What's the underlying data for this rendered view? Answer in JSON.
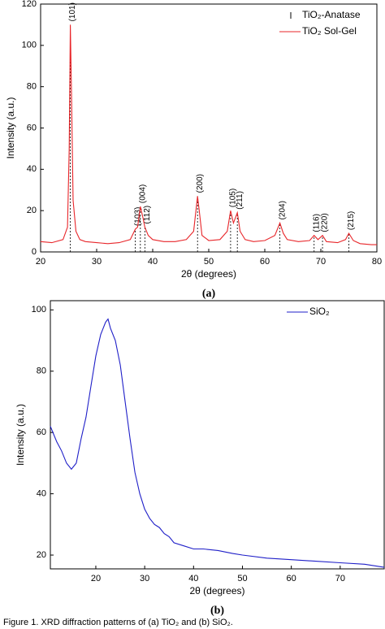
{
  "chart_data": [
    {
      "type": "line",
      "label": "(a)",
      "xlabel": "2θ (degrees)",
      "ylabel": "Intensity (a.u.)",
      "xlim": [
        20,
        80
      ],
      "ylim": [
        0,
        120
      ],
      "xticks": [
        20,
        30,
        40,
        50,
        60,
        70,
        80
      ],
      "yticks": [
        0,
        20,
        40,
        60,
        80,
        100,
        120
      ],
      "legend": "upper right",
      "x": [
        20,
        22,
        24,
        24.8,
        25.1,
        25.3,
        25.5,
        25.8,
        26.3,
        27,
        28,
        30,
        32,
        34,
        36,
        36.9,
        37.3,
        37.8,
        38.3,
        38.6,
        39.2,
        40,
        42,
        44,
        46,
        47.3,
        47.8,
        48.0,
        48.3,
        48.8,
        50,
        52,
        53.3,
        53.9,
        54.4,
        55.1,
        55.6,
        56.5,
        58,
        60,
        61.8,
        62.7,
        63.3,
        64,
        66,
        68,
        68.8,
        69.5,
        70.3,
        71,
        73,
        74.4,
        75.0,
        75.8,
        77,
        79,
        80
      ],
      "series": [
        {
          "name": "TiO₂ Sol-Gel",
          "color": "#e8262a",
          "values": [
            5,
            4.5,
            6,
            12,
            50,
            110,
            80,
            25,
            10,
            6,
            5,
            4.5,
            4,
            4.5,
            6,
            11,
            12,
            22,
            16,
            12,
            8,
            6,
            5,
            5,
            6,
            10,
            22,
            27,
            20,
            8,
            5.5,
            6,
            10,
            20,
            14,
            19,
            10,
            6,
            5,
            5.5,
            8,
            14,
            9,
            6,
            5,
            5.5,
            8,
            6,
            8,
            5,
            4.5,
            6,
            9,
            5.5,
            4,
            3.5,
            3.5
          ]
        }
      ],
      "reference": {
        "name": "TiO₂-Anatase",
        "x": [
          25.3,
          36.9,
          37.8,
          38.6,
          48.0,
          53.9,
          55.1,
          62.7,
          68.8,
          70.3,
          75.0
        ],
        "labels": [
          "(101)",
          "(103)",
          "(004)",
          "(112)",
          "(200)",
          "(105)",
          "(211)",
          "(204)",
          "(116)",
          "(220)",
          "(215)"
        ]
      }
    },
    {
      "type": "line",
      "label": "(b)",
      "xlabel": "2θ (degrees)",
      "ylabel": "Intensity (a.u.)",
      "xlim": [
        10.7,
        79
      ],
      "ylim": [
        15.5,
        103
      ],
      "xticks": [
        20,
        30,
        40,
        50,
        60,
        70
      ],
      "yticks": [
        20,
        40,
        60,
        80,
        100
      ],
      "legend": "upper right",
      "x": [
        10.7,
        12,
        13,
        14,
        15,
        16,
        17,
        18,
        19,
        20,
        21,
        22,
        22.5,
        23,
        24,
        25,
        26,
        27,
        28,
        29,
        30,
        31,
        32,
        33,
        34,
        35,
        36,
        38,
        40,
        42,
        45,
        48,
        50,
        55,
        60,
        65,
        70,
        75,
        79
      ],
      "series": [
        {
          "name": "SiO₂",
          "color": "#1f1fc8",
          "values": [
            62,
            57,
            54,
            50,
            48,
            50,
            58,
            65,
            75,
            85,
            92,
            96,
            97,
            94,
            90,
            82,
            70,
            58,
            47,
            40,
            35,
            32,
            30,
            29,
            27,
            26,
            24,
            23,
            22,
            22,
            21.5,
            20.5,
            20,
            19,
            18.5,
            18,
            17.5,
            17,
            16
          ]
        }
      ]
    }
  ],
  "caption": "Figure 1. XRD diffraction patterns of (a) TiO₂ and (b) SiO₂."
}
